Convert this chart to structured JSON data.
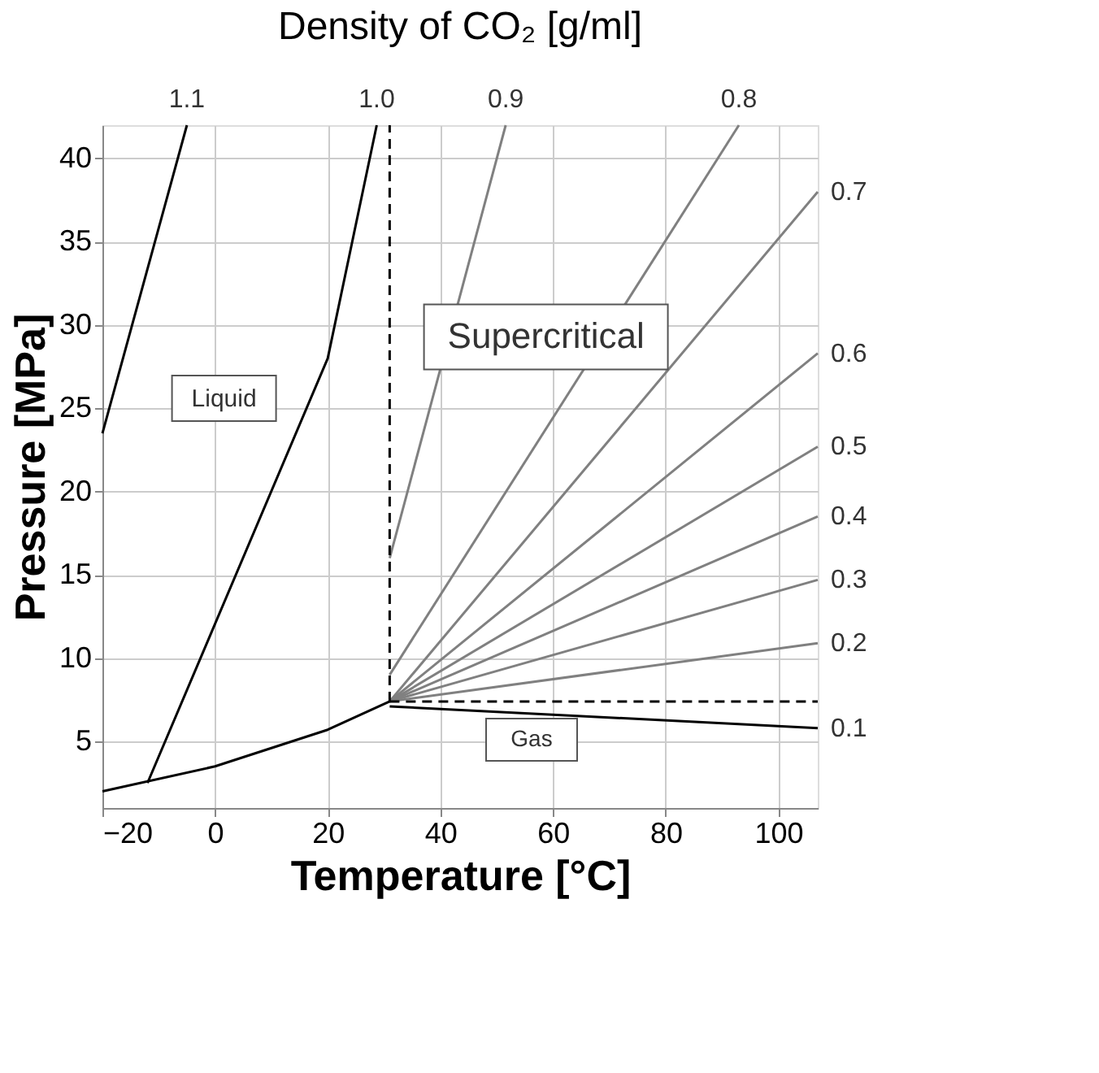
{
  "chart_data": {
    "type": "line",
    "title": "Density of CO₂ [g/ml]",
    "xlabel": "Temperature [°C]",
    "ylabel": "Pressure [MPa]",
    "xlim": [
      -20,
      107
    ],
    "ylim": [
      1,
      42
    ],
    "xticks": [
      -20,
      0,
      20,
      40,
      60,
      80,
      100
    ],
    "yticks": [
      5,
      10,
      15,
      20,
      25,
      30,
      35,
      40
    ],
    "grid": true,
    "marker": "none",
    "series": [
      {
        "name": "1.1",
        "color": "#000000",
        "x": [
          -20,
          -5
        ],
        "values": [
          23.5,
          42
        ]
      },
      {
        "name": "1.0",
        "color": "#000000",
        "x": [
          -12,
          20,
          28.7
        ],
        "values": [
          2.5,
          28,
          42
        ]
      },
      {
        "name": "0.9",
        "color": "#808080",
        "x": [
          31,
          51.6
        ],
        "values": [
          16,
          42
        ]
      },
      {
        "name": "0.8",
        "color": "#808080",
        "x": [
          31,
          93
        ],
        "values": [
          9,
          42
        ]
      },
      {
        "name": "0.7",
        "color": "#808080",
        "x": [
          31,
          107
        ],
        "values": [
          7.4,
          38
        ]
      },
      {
        "name": "0.6",
        "color": "#808080",
        "x": [
          31,
          107
        ],
        "values": [
          7.4,
          28.3
        ]
      },
      {
        "name": "0.5",
        "color": "#808080",
        "x": [
          31,
          107
        ],
        "values": [
          7.4,
          22.7
        ]
      },
      {
        "name": "0.4",
        "color": "#808080",
        "x": [
          31,
          107
        ],
        "values": [
          7.4,
          18.5
        ]
      },
      {
        "name": "0.3",
        "color": "#808080",
        "x": [
          31,
          107
        ],
        "values": [
          7.4,
          14.7
        ]
      },
      {
        "name": "0.2",
        "color": "#808080",
        "x": [
          31,
          107
        ],
        "values": [
          7.4,
          10.9
        ]
      },
      {
        "name": "0.1",
        "color": "#000000",
        "x": [
          31,
          107
        ],
        "values": [
          7.1,
          5.8
        ]
      },
      {
        "color": "#000000",
        "x": [
          -20,
          0,
          20,
          31
        ],
        "values": [
          2,
          3.5,
          5.7,
          7.4
        ]
      },
      {
        "color": "#000000",
        "line_style": "dashed",
        "x": [
          31,
          31
        ],
        "values": [
          7.4,
          42
        ]
      },
      {
        "color": "#000000",
        "line_style": "dashed",
        "x": [
          31,
          107
        ],
        "values": [
          7.4,
          7.4
        ]
      }
    ],
    "annotations": [
      "Liquid",
      "Supercritical",
      "Gas"
    ]
  }
}
